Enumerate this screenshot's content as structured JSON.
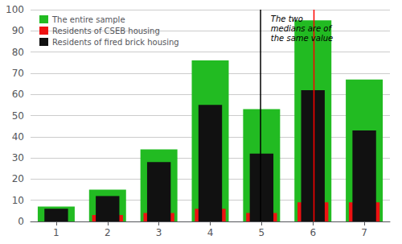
{
  "chart_data": {
    "type": "bar",
    "x": [
      1,
      2,
      3,
      4,
      5,
      6,
      7
    ],
    "series": [
      {
        "name": "The entire sample",
        "color": "#22bb22",
        "values": [
          7,
          15,
          34,
          76,
          53,
          95,
          67
        ]
      },
      {
        "name": "Residents of CSEB housing",
        "color": "#ee1111",
        "values": [
          0,
          3,
          4,
          6,
          4,
          9,
          9
        ]
      },
      {
        "name": "Residents of fired brick housing",
        "color": "#111111",
        "values": [
          6,
          12,
          28,
          55,
          32,
          62,
          43
        ]
      }
    ],
    "vlines": [
      {
        "x": 4.98,
        "color": "black"
      },
      {
        "x": 6.02,
        "color": "red"
      }
    ],
    "annotations": [
      {
        "text": "The two\nmedians are of\nthe same value",
        "x": 5.18,
        "y": 98
      }
    ],
    "xlim": [
      0.5,
      7.5
    ],
    "xticks": [
      1,
      2,
      3,
      4,
      5,
      6,
      7
    ],
    "ylim": [
      0,
      100
    ],
    "yticks": [
      0,
      10,
      20,
      30,
      40,
      50,
      60,
      70,
      80,
      90,
      100
    ],
    "grid": true,
    "legend": "upper left"
  }
}
